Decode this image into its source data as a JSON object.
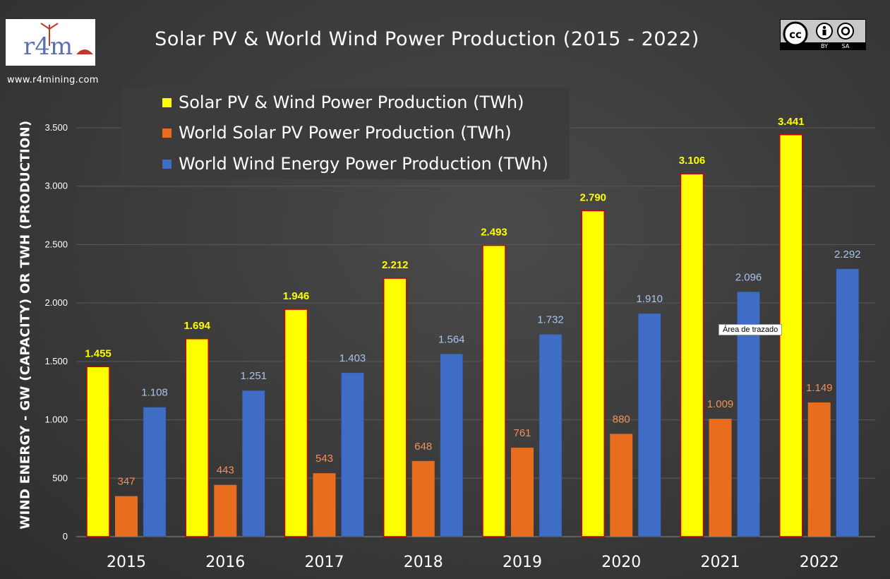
{
  "header": {
    "title": "Solar PV & World Wind Power Production (2015 - 2022)",
    "website": "www.r4mining.com",
    "logo_text": "r4m",
    "license": {
      "top": "cc",
      "by": "BY",
      "sa": "SA"
    }
  },
  "tooltip": "Área de trazado",
  "colors": {
    "total": "#ffff00",
    "solar": "#e86d1f",
    "wind": "#3f6cc4",
    "total_label": "#ffff00",
    "solar_label": "#f0905a",
    "wind_label": "#a9c3ea"
  },
  "chart_data": {
    "type": "bar",
    "title": "Solar PV & World Wind Power Production (2015 - 2022)",
    "ylabel": "WIND ENERGY - GW (CAPACITY)  OR TWH (PRODUCTION)",
    "xlabel": "",
    "ylim": [
      0,
      3500
    ],
    "yticks": [
      0,
      500,
      1000,
      1500,
      2000,
      2500,
      3000,
      3500
    ],
    "ytick_labels": [
      "0",
      "500",
      "1.000",
      "1.500",
      "2.000",
      "2.500",
      "3.000",
      "3.500"
    ],
    "grid": true,
    "legend_position": "top-left",
    "categories": [
      "2015",
      "2016",
      "2017",
      "2018",
      "2019",
      "2020",
      "2021",
      "2022"
    ],
    "series": [
      {
        "name": "Solar PV & Wind Power Production (TWh)",
        "key": "total",
        "values": [
          1455,
          1694,
          1946,
          2212,
          2493,
          2790,
          3106,
          3441
        ],
        "labels": [
          "1.455",
          "1.694",
          "1.946",
          "2.212",
          "2.493",
          "2.790",
          "3.106",
          "3.441"
        ]
      },
      {
        "name": "World Solar PV Power Production (TWh)",
        "key": "solar",
        "values": [
          347,
          443,
          543,
          648,
          761,
          880,
          1009,
          1149
        ],
        "labels": [
          "347",
          "443",
          "543",
          "648",
          "761",
          "880",
          "1.009",
          "1.149"
        ]
      },
      {
        "name": "World Wind Energy Power Production (TWh)",
        "key": "wind",
        "values": [
          1108,
          1251,
          1403,
          1564,
          1732,
          1910,
          2096,
          2292
        ],
        "labels": [
          "1.108",
          "1.251",
          "1.403",
          "1.564",
          "1.732",
          "1.910",
          "2.096",
          "2.292"
        ]
      }
    ]
  }
}
